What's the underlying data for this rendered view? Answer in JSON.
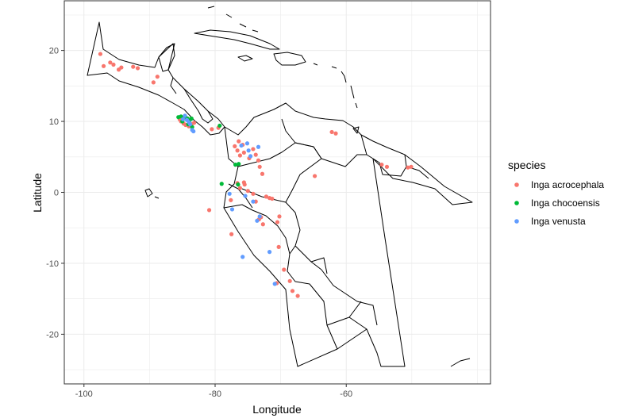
{
  "chart_data": {
    "type": "scatter",
    "title": "",
    "xlabel": "Longitude",
    "ylabel": "Latitude",
    "xlim": [
      -103,
      -38
    ],
    "ylim": [
      -27,
      27
    ],
    "x_ticks": [
      -100,
      -80,
      -60
    ],
    "y_ticks": [
      -20,
      -10,
      0,
      10,
      20
    ],
    "x_tick_labels": [
      "-100",
      "-80",
      "-60"
    ],
    "y_tick_labels": [
      "-20",
      "-10",
      "0",
      "10",
      "20"
    ],
    "grid": true,
    "legend_title": "species",
    "legend_position": "right",
    "series": [
      {
        "name": "Inga acrocephala",
        "color": "#F8766D",
        "points": [
          [
            -97.5,
            19.5
          ],
          [
            -97,
            17.8
          ],
          [
            -96,
            18.3
          ],
          [
            -95.5,
            18
          ],
          [
            -94.7,
            17.3
          ],
          [
            -94.3,
            17.6
          ],
          [
            -92.5,
            17.7
          ],
          [
            -91.8,
            17.5
          ],
          [
            -89.4,
            15.5
          ],
          [
            -88.8,
            16.3
          ],
          [
            -85.4,
            10.3
          ],
          [
            -85.2,
            10
          ],
          [
            -84.8,
            9.7
          ],
          [
            -84.5,
            9.5
          ],
          [
            -84,
            9.3
          ],
          [
            -83.6,
            9.6
          ],
          [
            -83.2,
            9.8
          ],
          [
            -80.5,
            8.9
          ],
          [
            -79.5,
            9.1
          ],
          [
            -77,
            6.5
          ],
          [
            -76.6,
            5.9
          ],
          [
            -76.4,
            7.2
          ],
          [
            -75.8,
            6.7
          ],
          [
            -76.2,
            5.2
          ],
          [
            -75.6,
            5.6
          ],
          [
            -74.8,
            4.8
          ],
          [
            -74.2,
            6.1
          ],
          [
            -73.4,
            4.5
          ],
          [
            -73.2,
            3.6
          ],
          [
            -72.8,
            2.6
          ],
          [
            -73.8,
            5.3
          ],
          [
            -76.6,
            1.3
          ],
          [
            -75.6,
            1.4
          ],
          [
            -75.5,
            1.1
          ],
          [
            -76.2,
            0.6
          ],
          [
            -75,
            0.2
          ],
          [
            -74.2,
            -0.2
          ],
          [
            -72.2,
            -0.6
          ],
          [
            -71.7,
            -0.8
          ],
          [
            -71.3,
            -0.9
          ],
          [
            -77.6,
            -1.1
          ],
          [
            -73.8,
            -1.3
          ],
          [
            -73.3,
            -3.8
          ],
          [
            -73,
            -3.5
          ],
          [
            -72.7,
            -4.5
          ],
          [
            -70.5,
            -4.2
          ],
          [
            -70.2,
            -3.4
          ],
          [
            -77.5,
            -5.9
          ],
          [
            -80.9,
            -2.5
          ],
          [
            -70.3,
            -7.7
          ],
          [
            -69.5,
            -10.9
          ],
          [
            -70.6,
            -12.8
          ],
          [
            -68.6,
            -12.5
          ],
          [
            -68.2,
            -13.9
          ],
          [
            -67.4,
            -14.6
          ],
          [
            -62.2,
            8.5
          ],
          [
            -61.6,
            8.3
          ],
          [
            -64.8,
            2.3
          ],
          [
            -54.6,
            3.9
          ],
          [
            -53.8,
            3.6
          ],
          [
            -50.6,
            3.5
          ],
          [
            -50.1,
            3.6
          ]
        ]
      },
      {
        "name": "Inga chocoensis",
        "color": "#00BA38",
        "points": [
          [
            -85.6,
            10.6
          ],
          [
            -85.2,
            10.7
          ],
          [
            -84.8,
            10.4
          ],
          [
            -84.5,
            10.6
          ],
          [
            -84.2,
            10.4
          ],
          [
            -83.9,
            10.1
          ],
          [
            -83.6,
            10.4
          ],
          [
            -84.1,
            9.6
          ],
          [
            -83.5,
            9.2
          ],
          [
            -85,
            10
          ],
          [
            -79.3,
            9.4
          ],
          [
            -76.9,
            3.9
          ],
          [
            -76.4,
            4
          ],
          [
            -76.5,
            1.1
          ],
          [
            -79,
            1.2
          ]
        ]
      },
      {
        "name": "Inga venusta",
        "color": "#619CFF",
        "points": [
          [
            -84.6,
            10.8
          ],
          [
            -84.3,
            10.2
          ],
          [
            -84,
            9.9
          ],
          [
            -83.8,
            9.6
          ],
          [
            -83.3,
            8.6
          ],
          [
            -84.9,
            10.3
          ],
          [
            -83.5,
            8.8
          ],
          [
            -76,
            6.6
          ],
          [
            -75.1,
            6.9
          ],
          [
            -74.9,
            5.9
          ],
          [
            -73.4,
            6.4
          ],
          [
            -74.6,
            5.1
          ],
          [
            -77.8,
            -0.2
          ],
          [
            -77.4,
            -2.4
          ],
          [
            -75.4,
            -0.5
          ],
          [
            -74.2,
            -1.3
          ],
          [
            -73.6,
            -4
          ],
          [
            -73.2,
            -3.4
          ],
          [
            -75.8,
            -9.1
          ],
          [
            -70.9,
            -12.9
          ],
          [
            -71.7,
            -8.4
          ]
        ]
      }
    ]
  }
}
